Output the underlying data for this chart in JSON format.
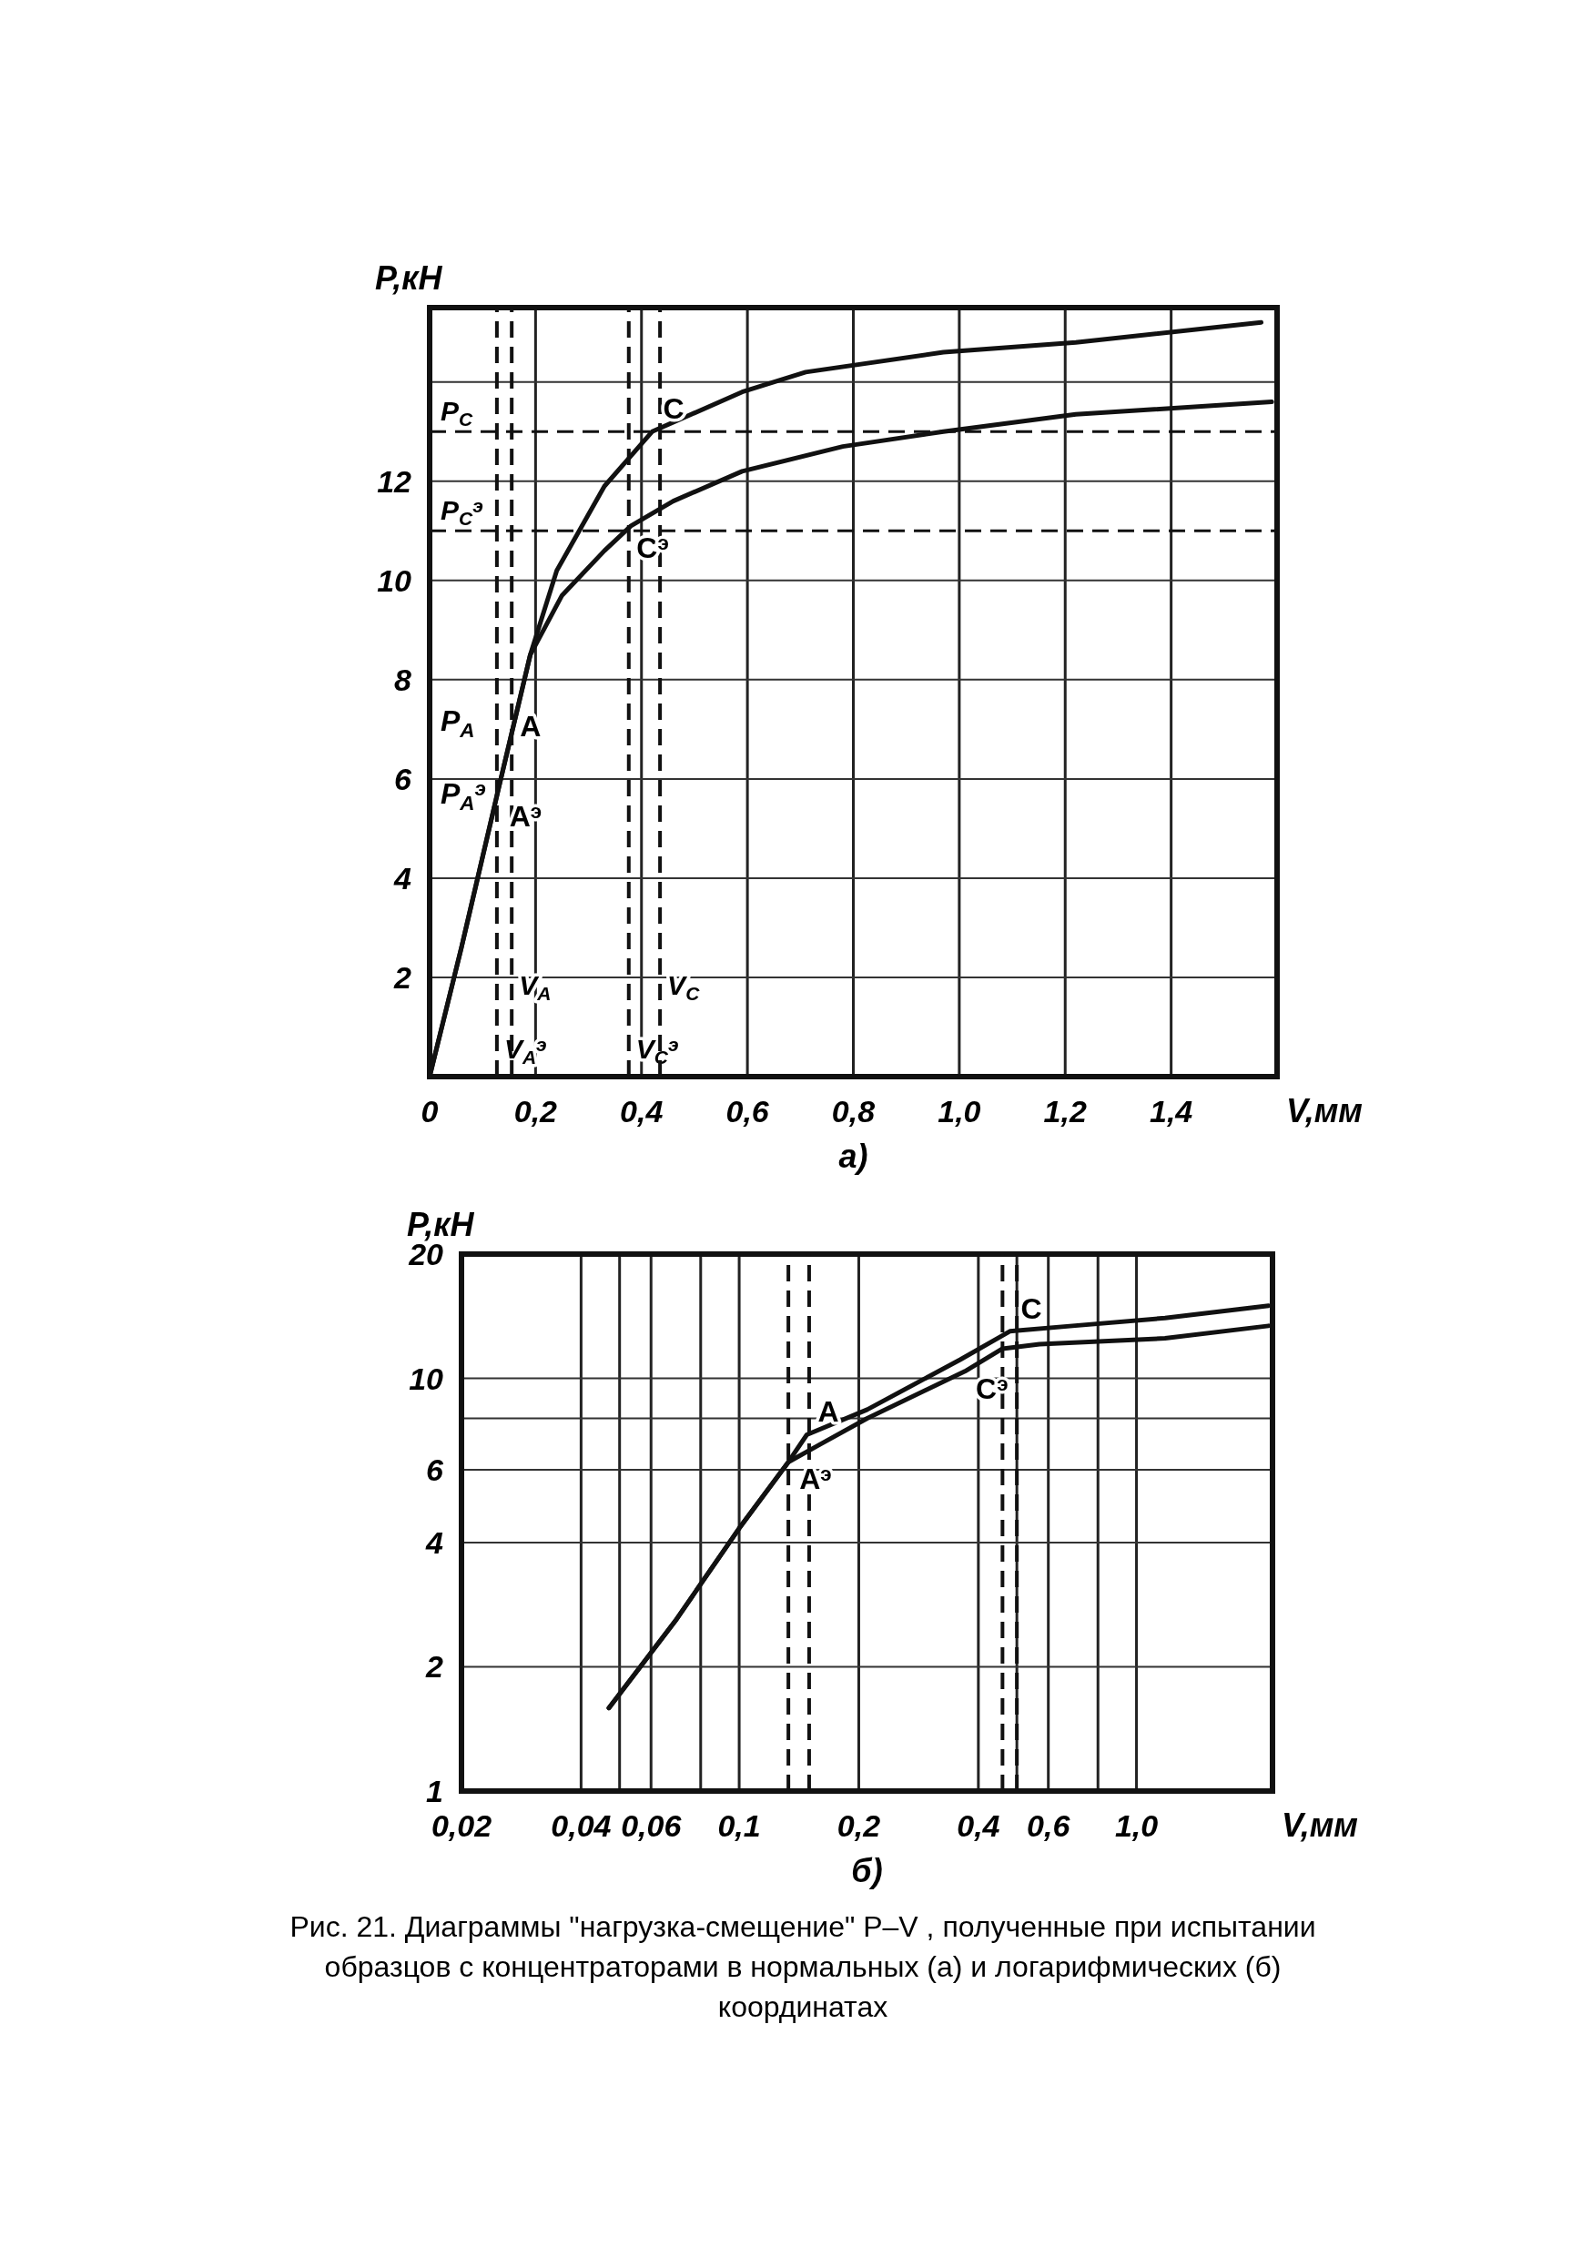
{
  "chart_data": [
    {
      "type": "line",
      "subtitle": "а)",
      "xlabel": "V,мм",
      "ylabel": "P,кН",
      "xlim": [
        0,
        1.6
      ],
      "ylim": [
        0,
        15.5
      ],
      "xticks": [
        0,
        {
          "value": 0.2,
          "label": "0,2"
        },
        {
          "value": 0.4,
          "label": "0,4"
        },
        {
          "value": 0.6,
          "label": "0,6"
        },
        {
          "value": 0.8,
          "label": "0,8"
        },
        {
          "value": 1.0,
          "label": "1,0"
        },
        {
          "value": 1.2,
          "label": "1,2"
        },
        {
          "value": 1.4,
          "label": "1,4"
        }
      ],
      "yticks": [
        2,
        4,
        6,
        8,
        10,
        12,
        {
          "value": 14,
          "label": null
        }
      ],
      "grid": true,
      "line_style": "solid",
      "marker": "none",
      "series": [
        {
          "color": "#111111",
          "x": [
            0,
            0.06,
            0.13,
            0.19,
            0.24,
            0.33,
            0.42,
            0.59,
            0.71,
            0.97,
            1.22,
            1.57
          ],
          "values": [
            0,
            2.6,
            5.8,
            8.5,
            10.2,
            11.9,
            13.0,
            13.8,
            14.2,
            14.6,
            14.8,
            15.2
          ]
        },
        {
          "color": "#111111",
          "x": [
            0,
            0.06,
            0.13,
            0.19,
            0.25,
            0.33,
            0.38,
            0.46,
            0.59,
            0.78,
            0.97,
            1.22,
            1.59
          ],
          "values": [
            0,
            2.6,
            5.8,
            8.5,
            9.7,
            10.6,
            11.1,
            11.6,
            12.2,
            12.7,
            13.0,
            13.35,
            13.6
          ]
        }
      ],
      "ref_lines": [
        {
          "axis": "y",
          "value": 13.0,
          "label": "P$_{C}$",
          "line_style": "dashed"
        },
        {
          "axis": "y",
          "value": 11.0,
          "label": "P$_{C}$$^{э}$",
          "line_style": "dashed"
        },
        {
          "axis": "x",
          "value": 0.127,
          "label": "V$_{A}$$^{э}$",
          "line_style": "dashed"
        },
        {
          "axis": "x",
          "value": 0.155,
          "label": "V$_{A}$",
          "line_style": "dashed"
        },
        {
          "axis": "x",
          "value": 0.376,
          "label": "V$_{C}$$^{э}$",
          "line_style": "dashed"
        },
        {
          "axis": "x",
          "value": 0.435,
          "label": "V$_{C}$",
          "line_style": "dashed"
        }
      ],
      "annotations": [
        {
          "text": "C",
          "x": 0.42,
          "y": 13.0
        },
        {
          "text": "C$^{э}$",
          "x": 0.37,
          "y": 11.0
        },
        {
          "text": "A",
          "x": 0.15,
          "y": 6.6
        },
        {
          "text": "A$^{э}$",
          "x": 0.13,
          "y": 5.6
        },
        "P$_{A}$",
        "P$_{A}$$^{э}$"
      ]
    },
    {
      "type": "line",
      "subtitle": "б)",
      "xlabel": "V,мм",
      "ylabel": "P,кН",
      "log": "xy",
      "xlim": [
        0.02,
        2.2
      ],
      "ylim": [
        1,
        20
      ],
      "xticks": [
        {
          "value": 0.02,
          "label": "0,02"
        },
        {
          "value": 0.04,
          "label": "0,04"
        },
        {
          "value": 0.05,
          "label": null
        },
        {
          "value": 0.06,
          "label": "0,06"
        },
        {
          "value": 0.08,
          "label": null
        },
        {
          "value": 0.1,
          "label": "0,1"
        },
        {
          "value": 0.2,
          "label": "0,2"
        },
        {
          "value": 0.4,
          "label": "0,4"
        },
        {
          "value": 0.5,
          "label": null
        },
        {
          "value": 0.6,
          "label": "0,6"
        },
        {
          "value": 0.8,
          "label": null
        },
        {
          "value": 1.0,
          "label": "1,0"
        }
      ],
      "yticks": [
        1,
        2,
        4,
        6,
        {
          "value": 8,
          "label": null
        },
        10,
        20
      ],
      "grid": true,
      "line_style": "solid",
      "marker": "none",
      "series": [
        {
          "color": "#111111",
          "x": [
            0.047,
            0.069,
            0.1,
            0.133,
            0.148,
            0.21,
            0.36,
            0.48,
            0.69,
            1.18,
            2.15
          ],
          "values": [
            1.59,
            2.58,
            4.33,
            6.27,
            7.3,
            8.4,
            11.1,
            13.0,
            13.4,
            14.0,
            15.0
          ]
        },
        {
          "color": "#111111",
          "x": [
            0.047,
            0.069,
            0.1,
            0.133,
            0.159,
            0.21,
            0.37,
            0.46,
            0.57,
            1.18,
            2.15
          ],
          "values": [
            1.59,
            2.58,
            4.33,
            6.27,
            6.9,
            8.0,
            10.4,
            11.8,
            12.1,
            12.5,
            13.4
          ]
        }
      ],
      "ref_lines": [
        {
          "axis": "x",
          "value": 0.133,
          "line_style": "dashed"
        },
        {
          "axis": "x",
          "value": 0.15,
          "line_style": "dashed"
        },
        {
          "axis": "x",
          "value": 0.46,
          "line_style": "dashed"
        },
        {
          "axis": "x",
          "value": 0.5,
          "line_style": "dashed"
        }
      ],
      "annotations": [
        {
          "text": "A",
          "x": 0.148,
          "y": 7.3
        },
        {
          "text": "A$^{э}$",
          "x": 0.133,
          "y": 6.27
        },
        {
          "text": "C",
          "x": 0.48,
          "y": 13.0
        },
        {
          "text": "C$^{э}$",
          "x": 0.37,
          "y": 10.4
        },
        "Рис. 21. Диаграммы \"нагрузка-смещение\" P–V , полученные при испытании образцов с концентраторами в нормальных (а) и логарифмических (б) координатах"
      ]
    }
  ]
}
